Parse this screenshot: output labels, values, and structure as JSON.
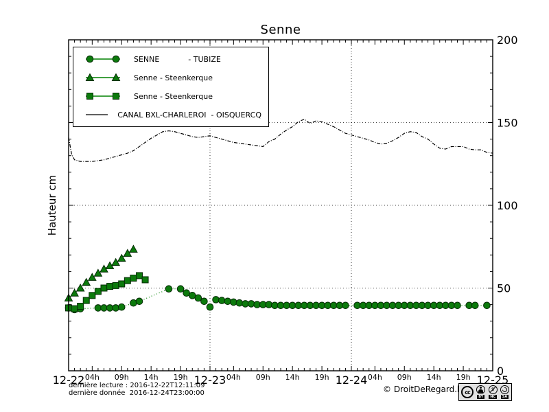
{
  "title": "Senne",
  "ylabel": "Hauteur cm",
  "legend": {
    "items": [
      {
        "marker": "circle",
        "label": "SENNE            - TUBIZE"
      },
      {
        "marker": "triangle",
        "label": "Senne - Steenkerque"
      },
      {
        "marker": "square",
        "label": "Senne - Steenkerque"
      },
      {
        "marker": "line",
        "label": "CANAL BXL-CHARLEROI  - OISQUERCQ"
      }
    ]
  },
  "footer": {
    "line1": "dernière lecture : 2016-12-22T12:11:09",
    "line2": "dernière donnée  2016-12-24T23:00:00",
    "copyright": "© DroitDeRegard.be",
    "cc_badge": {
      "cc": "cc",
      "by": "BY",
      "nc": "NC",
      "sa": "SA"
    }
  },
  "colors": {
    "series_green_line": "#008000",
    "marker_fill": "#0c7a0c",
    "marker_edge": "#052b05",
    "canal_black": "#000000",
    "grid": "#000000"
  },
  "chart_data": {
    "type": "line",
    "title": "Senne",
    "ylabel": "Hauteur cm",
    "ylim": [
      0,
      200
    ],
    "x_unit": "hours since 2016-12-22 00:00",
    "x_hours_range": [
      0,
      72
    ],
    "y_major_ticks": [
      0,
      50,
      100,
      150,
      200
    ],
    "y_minor_step": 10,
    "grid_y": [
      50,
      100,
      150
    ],
    "grid_x_hours": [
      24,
      48
    ],
    "legend_position": "upper left",
    "x_ticks": [
      {
        "t": 0,
        "label": "12-22",
        "day": true
      },
      {
        "t": 4,
        "label": "04h"
      },
      {
        "t": 9,
        "label": "09h"
      },
      {
        "t": 14,
        "label": "14h"
      },
      {
        "t": 19,
        "label": "19h"
      },
      {
        "t": 24,
        "label": "12-23",
        "day": true
      },
      {
        "t": 28,
        "label": "04h"
      },
      {
        "t": 33,
        "label": "09h"
      },
      {
        "t": 38,
        "label": "14h"
      },
      {
        "t": 43,
        "label": "19h"
      },
      {
        "t": 48,
        "label": "12-24",
        "day": true
      },
      {
        "t": 52,
        "label": "04h"
      },
      {
        "t": 57,
        "label": "09h"
      },
      {
        "t": 62,
        "label": "14h"
      },
      {
        "t": 67,
        "label": "19h"
      },
      {
        "t": 72,
        "label": "12-25",
        "day": true
      }
    ],
    "series": [
      {
        "name": "SENNE - TUBIZE",
        "marker": "circle",
        "line_style": "dotted",
        "color": "#008000",
        "points": [
          [
            0,
            38
          ],
          [
            1,
            37
          ],
          [
            2,
            37.5
          ],
          [
            5,
            38
          ],
          [
            6,
            38
          ],
          [
            7,
            38
          ],
          [
            8,
            38
          ],
          [
            9,
            38.5
          ],
          [
            11,
            41
          ],
          [
            12,
            42
          ],
          [
            17,
            49.5
          ],
          [
            19,
            49.5
          ],
          [
            20,
            47
          ],
          [
            21,
            45.5
          ],
          [
            22,
            44
          ],
          [
            23,
            42
          ],
          [
            24,
            38.5
          ],
          [
            25,
            43
          ],
          [
            26,
            42.5
          ],
          [
            27,
            42
          ],
          [
            28,
            41.5
          ],
          [
            29,
            41
          ],
          [
            30,
            40.5
          ],
          [
            31,
            40.5
          ],
          [
            32,
            40
          ],
          [
            33,
            40
          ],
          [
            34,
            40
          ],
          [
            35,
            39.5
          ],
          [
            36,
            39.5
          ],
          [
            37,
            39.5
          ],
          [
            38,
            39.5
          ],
          [
            39,
            39.5
          ],
          [
            40,
            39.5
          ],
          [
            41,
            39.5
          ],
          [
            42,
            39.5
          ],
          [
            43,
            39.5
          ],
          [
            44,
            39.5
          ],
          [
            45,
            39.5
          ],
          [
            46,
            39.5
          ],
          [
            47,
            39.5
          ],
          [
            49,
            39.5
          ],
          [
            50,
            39.5
          ],
          [
            51,
            39.5
          ],
          [
            52,
            39.5
          ],
          [
            53,
            39.5
          ],
          [
            54,
            39.5
          ],
          [
            55,
            39.5
          ],
          [
            56,
            39.5
          ],
          [
            57,
            39.5
          ],
          [
            58,
            39.5
          ],
          [
            59,
            39.5
          ],
          [
            60,
            39.5
          ],
          [
            61,
            39.5
          ],
          [
            62,
            39.5
          ],
          [
            63,
            39.5
          ],
          [
            64,
            39.5
          ],
          [
            65,
            39.5
          ],
          [
            66,
            39.5
          ],
          [
            68,
            39.5
          ],
          [
            69,
            39.5
          ],
          [
            71,
            39.5
          ]
        ]
      },
      {
        "name": "Senne - Steenkerque",
        "marker": "triangle",
        "line_style": "dashdot",
        "color": "#008000",
        "points": [
          [
            0,
            44
          ],
          [
            1,
            47
          ],
          [
            2,
            50
          ],
          [
            3,
            53.5
          ],
          [
            4,
            56.5
          ],
          [
            5,
            59
          ],
          [
            6,
            61.5
          ],
          [
            7,
            63.5
          ],
          [
            8,
            65.5
          ],
          [
            9,
            68
          ],
          [
            10,
            71
          ],
          [
            11,
            73.5
          ]
        ]
      },
      {
        "name": "Senne - Steenkerque",
        "marker": "square",
        "line_style": "dashdot",
        "color": "#008000",
        "points": [
          [
            0,
            38
          ],
          [
            1,
            37.5
          ],
          [
            2,
            39
          ],
          [
            3,
            42.5
          ],
          [
            4,
            45.5
          ],
          [
            5,
            48
          ],
          [
            6,
            50
          ],
          [
            7,
            51
          ],
          [
            8,
            51.5
          ],
          [
            9,
            52.5
          ],
          [
            10,
            54.5
          ],
          [
            11,
            56
          ],
          [
            12,
            57.5
          ],
          [
            13,
            55
          ]
        ]
      },
      {
        "name": "CANAL BXL-CHARLEROI - OISQUERCQ",
        "marker": "none",
        "line_style": "dashdot",
        "color": "#000000",
        "points": [
          [
            0,
            141
          ],
          [
            0.5,
            131
          ],
          [
            1,
            127.5
          ],
          [
            2,
            126.5
          ],
          [
            3,
            126.5
          ],
          [
            4,
            126.5
          ],
          [
            5,
            127
          ],
          [
            6,
            127.5
          ],
          [
            7,
            128.5
          ],
          [
            8,
            129.5
          ],
          [
            9,
            130.5
          ],
          [
            10,
            131.5
          ],
          [
            11,
            133
          ],
          [
            12,
            135.5
          ],
          [
            13,
            138
          ],
          [
            14,
            140.5
          ],
          [
            15,
            142.5
          ],
          [
            16,
            144.5
          ],
          [
            17,
            145
          ],
          [
            18,
            144.5
          ],
          [
            19,
            143.5
          ],
          [
            20,
            142.5
          ],
          [
            21,
            141.5
          ],
          [
            22,
            141
          ],
          [
            23,
            141.5
          ],
          [
            24,
            142
          ],
          [
            25,
            141
          ],
          [
            26,
            140
          ],
          [
            27,
            139
          ],
          [
            28,
            138
          ],
          [
            29,
            137.5
          ],
          [
            30,
            137
          ],
          [
            31,
            136.5
          ],
          [
            32,
            136
          ],
          [
            33,
            135.5
          ],
          [
            34,
            138.5
          ],
          [
            35,
            140
          ],
          [
            36,
            143
          ],
          [
            37,
            145.5
          ],
          [
            38,
            147.5
          ],
          [
            39,
            150.5
          ],
          [
            40,
            152
          ],
          [
            41,
            149.5
          ],
          [
            42,
            151
          ],
          [
            43,
            150.5
          ],
          [
            44,
            149
          ],
          [
            45,
            147.5
          ],
          [
            46,
            145.5
          ],
          [
            47,
            143.5
          ],
          [
            48,
            142.5
          ],
          [
            49,
            141.5
          ],
          [
            50,
            140.5
          ],
          [
            51,
            139.5
          ],
          [
            52,
            138
          ],
          [
            53,
            137
          ],
          [
            54,
            137.5
          ],
          [
            55,
            139
          ],
          [
            56,
            141
          ],
          [
            57,
            143.5
          ],
          [
            58,
            144.5
          ],
          [
            59,
            144
          ],
          [
            60,
            141.5
          ],
          [
            61,
            140
          ],
          [
            62,
            137
          ],
          [
            63,
            134.5
          ],
          [
            64,
            134
          ],
          [
            65,
            135.5
          ],
          [
            66,
            135.5
          ],
          [
            67,
            135.5
          ],
          [
            68,
            134
          ],
          [
            69,
            133.5
          ],
          [
            70,
            133.5
          ],
          [
            71,
            132
          ],
          [
            72,
            131.5
          ]
        ]
      }
    ]
  }
}
